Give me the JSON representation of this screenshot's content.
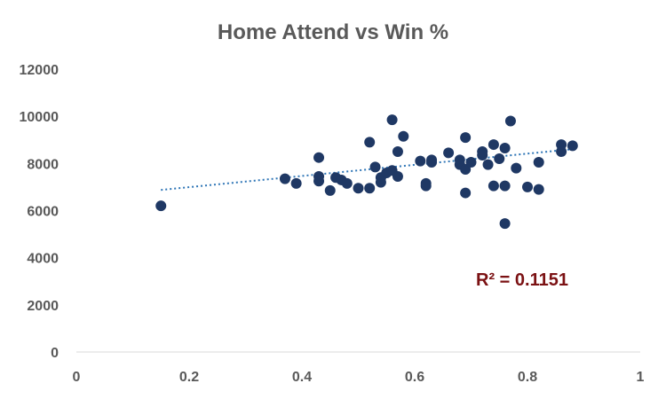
{
  "chart_data": {
    "type": "scatter",
    "title": "Home Attend vs Win %",
    "xlabel": "",
    "ylabel": "",
    "xlim": [
      0,
      1
    ],
    "ylim": [
      0,
      12000
    ],
    "x_ticks": [
      "0",
      "0.2",
      "0.4",
      "0.6",
      "0.8",
      "1"
    ],
    "y_ticks": [
      "0",
      "2000",
      "4000",
      "6000",
      "8000",
      "10000",
      "12000"
    ],
    "grid": false,
    "legend": "none",
    "point_color": "#1f3864",
    "trendline_color": "#2e75b6",
    "annotation_color": "#7b1113",
    "annotation": "R² = 0.1151",
    "trendline": {
      "type": "linear",
      "slope": 2370,
      "intercept": 6520,
      "x_range": [
        0.15,
        0.88
      ]
    },
    "points": [
      [
        0.15,
        6200
      ],
      [
        0.37,
        7350
      ],
      [
        0.39,
        7150
      ],
      [
        0.43,
        8250
      ],
      [
        0.43,
        7450
      ],
      [
        0.43,
        7250
      ],
      [
        0.45,
        6850
      ],
      [
        0.46,
        7400
      ],
      [
        0.47,
        7300
      ],
      [
        0.48,
        7150
      ],
      [
        0.5,
        6950
      ],
      [
        0.52,
        6950
      ],
      [
        0.52,
        8900
      ],
      [
        0.53,
        7850
      ],
      [
        0.54,
        7200
      ],
      [
        0.54,
        7400
      ],
      [
        0.55,
        7600
      ],
      [
        0.56,
        7700
      ],
      [
        0.56,
        9850
      ],
      [
        0.57,
        8500
      ],
      [
        0.57,
        7450
      ],
      [
        0.58,
        9150
      ],
      [
        0.61,
        8100
      ],
      [
        0.62,
        7150
      ],
      [
        0.62,
        7050
      ],
      [
        0.63,
        8150
      ],
      [
        0.63,
        8050
      ],
      [
        0.66,
        8450
      ],
      [
        0.68,
        8150
      ],
      [
        0.68,
        7950
      ],
      [
        0.69,
        9100
      ],
      [
        0.69,
        7750
      ],
      [
        0.69,
        6750
      ],
      [
        0.7,
        8050
      ],
      [
        0.72,
        8500
      ],
      [
        0.72,
        8350
      ],
      [
        0.73,
        7950
      ],
      [
        0.74,
        8800
      ],
      [
        0.74,
        7050
      ],
      [
        0.75,
        8200
      ],
      [
        0.76,
        7050
      ],
      [
        0.76,
        5450
      ],
      [
        0.76,
        8650
      ],
      [
        0.77,
        9800
      ],
      [
        0.78,
        7800
      ],
      [
        0.8,
        7000
      ],
      [
        0.82,
        8050
      ],
      [
        0.82,
        6900
      ],
      [
        0.86,
        8800
      ],
      [
        0.86,
        8500
      ],
      [
        0.88,
        8750
      ]
    ]
  }
}
